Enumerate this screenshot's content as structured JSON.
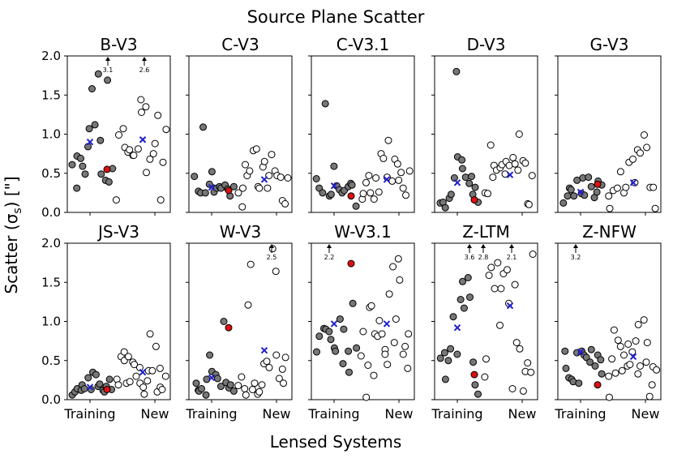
{
  "figure": {
    "title": "Source Plane Scatter",
    "xlabel": "Lensed Systems",
    "ylabel": "Scatter (σ",
    "ylabel_sub": "s",
    "ylabel_unit": ") [\"]",
    "xticklabels": [
      "Training",
      "New"
    ],
    "yticklabels": [
      "0.0",
      "0.5",
      "1.0",
      "1.5",
      "2.0"
    ]
  },
  "colors": {
    "training": "#777777",
    "new": "#ffffff",
    "median_training": "#dd1111",
    "median_new": "#2020cc",
    "edge": "#000000"
  },
  "chart_data": [
    {
      "type": "scatter",
      "title": "B-V3",
      "ylim": [
        0,
        2
      ],
      "training": [
        0.61,
        0.31,
        0.72,
        0.69,
        0.59,
        0.49,
        0.84,
        1.07,
        1.58,
        1.12,
        1.77,
        0.92,
        0.49,
        0.41,
        1.69,
        0.39,
        0.56
      ],
      "new": [
        0.16,
        0.99,
        1.07,
        0.83,
        0.77,
        0.8,
        0.73,
        0.73,
        0.81,
        1.44,
        1.28,
        1.35,
        0.51,
        0.68,
        0.75,
        0.88,
        1.24,
        0.16,
        0.64,
        1.06
      ],
      "median_training": 0.55,
      "median_new": 0.92,
      "cross_training": 0.9,
      "cross_new": 0.93,
      "clipped": [
        {
          "value": "3.1",
          "group": "training"
        },
        {
          "value": "2.6",
          "group": "new"
        }
      ]
    },
    {
      "type": "scatter",
      "title": "C-V3",
      "ylim": [
        0,
        2
      ],
      "training": [
        0.46,
        0.27,
        0.25,
        1.09,
        0.25,
        0.36,
        0.52,
        0.26,
        0.31,
        0.33,
        0.31,
        0.35,
        0.3,
        0.21,
        0.33
      ],
      "new": [
        0.25,
        0.07,
        0.31,
        0.61,
        0.47,
        0.53,
        0.79,
        0.81,
        0.33,
        0.31,
        0.58,
        0.65,
        0.31,
        0.47,
        0.74,
        0.53,
        0.47,
        0.45,
        0.15,
        0.11,
        0.44
      ],
      "median_training": 0.28,
      "median_new": 0.41,
      "cross_training": 0.32,
      "cross_new": 0.42,
      "clipped": []
    },
    {
      "type": "scatter",
      "title": "C-V3.1",
      "ylim": [
        0,
        2
      ],
      "training": [
        0.43,
        0.31,
        0.25,
        1.39,
        0.21,
        0.23,
        0.59,
        0.34,
        0.29,
        0.25,
        0.28,
        0.33,
        0.37,
        0.35,
        0.08
      ],
      "new": [
        0.17,
        0.24,
        0.38,
        0.47,
        0.25,
        0.17,
        0.44,
        0.26,
        0.75,
        0.69,
        0.45,
        0.92,
        0.4,
        0.68,
        0.62,
        0.41,
        0.51,
        0.31,
        0.22,
        0.53
      ],
      "median_training": 0.21,
      "median_new": 0.43,
      "cross_training": 0.34,
      "cross_new": 0.42,
      "clipped": []
    },
    {
      "type": "scatter",
      "title": "D-V3",
      "ylim": [
        0,
        2
      ],
      "training": [
        0.12,
        0.13,
        0.06,
        0.18,
        0.23,
        0.44,
        1.8,
        0.71,
        0.67,
        0.56,
        0.45,
        0.37,
        0.46,
        0.23,
        0.32,
        0.13
      ],
      "new": [
        0.25,
        0.24,
        0.86,
        0.45,
        0.6,
        0.54,
        0.57,
        0.61,
        0.49,
        0.65,
        0.6,
        0.7,
        0.62,
        0.54,
        1.0,
        0.66,
        0.63,
        0.11,
        0.1,
        0.47
      ],
      "median_training": 0.16,
      "median_new": 0.49,
      "cross_training": 0.38,
      "cross_new": 0.48,
      "clipped": []
    },
    {
      "type": "scatter",
      "title": "G-V3",
      "ylim": [
        0,
        2
      ],
      "training": [
        0.12,
        0.21,
        0.31,
        0.29,
        0.21,
        0.41,
        0.24,
        0.44,
        0.22,
        0.45,
        0.33,
        0.19,
        0.26,
        0.4,
        0.35
      ],
      "new": [
        0.21,
        0.05,
        0.28,
        0.31,
        0.52,
        0.25,
        0.32,
        0.64,
        0.68,
        0.38,
        0.8,
        0.76,
        0.99,
        0.83,
        0.32,
        0.32,
        0.05
      ],
      "median_training": 0.36,
      "median_new": 0.36,
      "cross_training": 0.26,
      "cross_new": 0.38,
      "clipped": []
    },
    {
      "type": "scatter",
      "title": "JS-V3",
      "ylim": [
        0,
        2
      ],
      "training": [
        0.06,
        0.1,
        0.14,
        0.12,
        0.19,
        0.14,
        0.28,
        0.13,
        0.35,
        0.32,
        0.17,
        0.2,
        0.12,
        0.1,
        0.17,
        0.26,
        0.13
      ],
      "new": [
        0.26,
        0.19,
        0.55,
        0.61,
        0.5,
        0.21,
        0.55,
        0.23,
        0.48,
        0.45,
        0.3,
        0.41,
        0.21,
        0.16,
        0.07,
        0.24,
        0.37,
        0.84,
        0.37,
        0.68,
        0.1,
        0.4,
        0.16,
        0.13,
        0.3
      ],
      "median_training": 0.13,
      "median_new": 0.33,
      "cross_training": 0.16,
      "cross_new": 0.35,
      "clipped": []
    },
    {
      "type": "scatter",
      "title": "W-V3",
      "ylim": [
        0,
        2
      ],
      "training": [
        0.21,
        0.12,
        0.11,
        0.14,
        0.06,
        0.26,
        0.57,
        0.36,
        0.32,
        0.27,
        0.17,
        1.0,
        0.22,
        0.15,
        0.19,
        0.11
      ],
      "new": [
        0.18,
        0.29,
        0.14,
        0.06,
        1.21,
        1.73,
        0.13,
        0.21,
        0.07,
        0.1,
        0.19,
        0.46,
        0.49,
        0.41,
        1.93,
        1.64,
        0.57,
        0.27,
        0.39,
        0.21,
        0.54
      ],
      "median_training": 0.92,
      "median_new": 0.63,
      "cross_training": 0.28,
      "cross_new": 0.63,
      "clipped": [
        {
          "value": "2.5",
          "group": "new"
        }
      ]
    },
    {
      "type": "scatter",
      "title": "W-V3.1",
      "ylim": [
        0,
        2
      ],
      "training": [
        0.61,
        0.81,
        0.91,
        0.9,
        0.87,
        0.77,
        0.66,
        0.62,
        1.03,
        0.46,
        0.9,
        0.62,
        0.35,
        1.23,
        0.66
      ],
      "new": [
        0.56,
        0.87,
        0.03,
        0.44,
        1.18,
        1.2,
        0.31,
        0.84,
        0.81,
        1.01,
        0.84,
        0.64,
        0.58,
        0.45,
        1.35,
        1.7,
        0.73,
        1.03,
        1.8,
        1.53,
        0.58,
        0.68,
        0.4,
        0.84
      ],
      "median_training": 1.74,
      "median_new": 0.98,
      "cross_training": 0.97,
      "cross_new": 0.97,
      "clipped": [
        {
          "value": "2.2",
          "group": "training"
        }
      ]
    },
    {
      "type": "scatter",
      "title": "Z-LTM",
      "ylim": [
        0,
        2
      ],
      "training": [
        0.53,
        0.6,
        0.26,
        0.5,
        0.65,
        1.06,
        0.58,
        1.28,
        1.51,
        1.17,
        1.56,
        1.31,
        0.48,
        0.19,
        0.07
      ],
      "new": [
        0.29,
        0.52,
        1.59,
        1.69,
        1.42,
        1.75,
        0.95,
        1.42,
        1.61,
        1.66,
        1.23,
        0.14,
        1.47,
        0.73,
        0.65,
        0.11,
        0.36,
        0.47,
        0.35,
        1.86
      ],
      "median_training": 0.32,
      "median_new": 1.2,
      "cross_training": 0.92,
      "cross_new": 1.2,
      "clipped": [
        {
          "value": "3.6",
          "group": "training"
        },
        {
          "value": "2.8",
          "group": "training"
        },
        {
          "value": "2.1",
          "group": "new"
        }
      ]
    },
    {
      "type": "scatter",
      "title": "Z-NFW",
      "ylim": [
        0,
        2
      ],
      "training": [
        0.62,
        0.4,
        0.28,
        0.26,
        0.23,
        0.6,
        0.21,
        0.62,
        0.57,
        0.54,
        0.48,
        0.64,
        0.43,
        0.57,
        0.51,
        0.33
      ],
      "new": [
        0.3,
        0.03,
        0.52,
        0.89,
        0.34,
        0.76,
        0.68,
        0.37,
        0.57,
        0.43,
        0.71,
        0.45,
        0.61,
        0.75,
        0.33,
        0.96,
        0.43,
        1.02,
        0.48,
        0.73,
        0.04,
        0.19,
        0.42,
        0.38
      ],
      "median_training": 0.19,
      "median_new": 0.58,
      "cross_training": 0.61,
      "cross_new": 0.55,
      "clipped": [
        {
          "value": "3.2",
          "group": "training"
        }
      ]
    }
  ]
}
